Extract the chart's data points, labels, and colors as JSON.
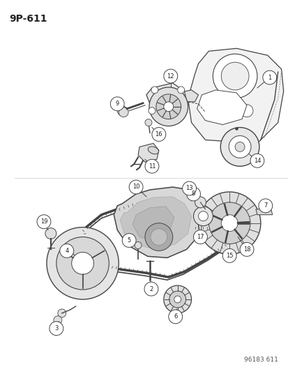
{
  "title": "9P-611",
  "footer": "96183 611",
  "background_color": "#ffffff",
  "line_color": "#444444",
  "text_color": "#222222",
  "fig_width": 4.14,
  "fig_height": 5.33,
  "dpi": 100
}
